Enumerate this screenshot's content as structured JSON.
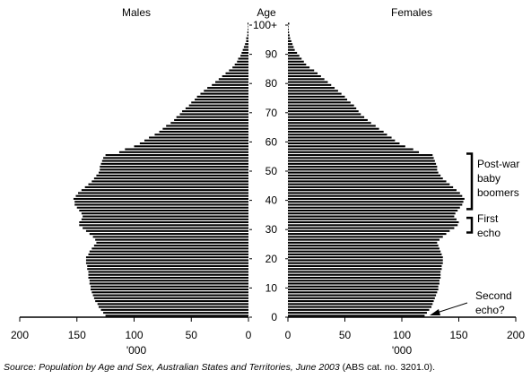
{
  "chart_data": {
    "type": "bar",
    "orientation": "horizontal-pyramid",
    "panels": [
      "Males",
      "Females"
    ],
    "center_label": "Age",
    "age_tick_labels": [
      "0",
      "10",
      "20",
      "30",
      "40",
      "50",
      "60",
      "70",
      "80",
      "90",
      "100+"
    ],
    "x_tick_labels": [
      "200",
      "150",
      "100",
      "50",
      "0"
    ],
    "x_unit_label": "'000",
    "xlim": [
      0,
      200
    ],
    "ages": [
      0,
      1,
      2,
      3,
      4,
      5,
      6,
      7,
      8,
      9,
      10,
      11,
      12,
      13,
      14,
      15,
      16,
      17,
      18,
      19,
      20,
      21,
      22,
      23,
      24,
      25,
      26,
      27,
      28,
      29,
      30,
      31,
      32,
      33,
      34,
      35,
      36,
      37,
      38,
      39,
      40,
      41,
      42,
      43,
      44,
      45,
      46,
      47,
      48,
      49,
      50,
      51,
      52,
      53,
      54,
      55,
      56,
      57,
      58,
      59,
      60,
      61,
      62,
      63,
      64,
      65,
      66,
      67,
      68,
      69,
      70,
      71,
      72,
      73,
      74,
      75,
      76,
      77,
      78,
      79,
      80,
      81,
      82,
      83,
      84,
      85,
      86,
      87,
      88,
      89,
      90,
      91,
      92,
      93,
      94,
      95,
      96,
      97,
      98,
      99,
      100
    ],
    "males": [
      125,
      127,
      129,
      131,
      132,
      134,
      135,
      136,
      137,
      138,
      138,
      139,
      139,
      140,
      140,
      140,
      141,
      141,
      142,
      142,
      142,
      140,
      139,
      137,
      135,
      133,
      134,
      136,
      139,
      142,
      145,
      148,
      148,
      146,
      145,
      146,
      148,
      150,
      152,
      152,
      153,
      151,
      149,
      146,
      143,
      140,
      137,
      135,
      133,
      131,
      130,
      130,
      129,
      128,
      127,
      125,
      113,
      108,
      100,
      95,
      91,
      87,
      82,
      78,
      75,
      72,
      68,
      65,
      63,
      60,
      58,
      55,
      52,
      50,
      47,
      45,
      42,
      39,
      36,
      32,
      29,
      26,
      23,
      20,
      17,
      14,
      12,
      10,
      9,
      7,
      6,
      5,
      4,
      3,
      2,
      2,
      1,
      1,
      0.6,
      0.4,
      0.8
    ],
    "females": [
      120,
      122,
      124,
      126,
      127,
      128,
      129,
      130,
      131,
      132,
      132,
      133,
      133,
      134,
      134,
      134,
      135,
      135,
      136,
      136,
      136,
      135,
      134,
      133,
      132,
      131,
      133,
      136,
      139,
      142,
      146,
      149,
      150,
      148,
      146,
      147,
      149,
      151,
      153,
      154,
      155,
      153,
      151,
      148,
      145,
      142,
      139,
      136,
      134,
      132,
      131,
      131,
      130,
      129,
      128,
      127,
      115,
      110,
      103,
      98,
      94,
      91,
      87,
      84,
      80,
      77,
      73,
      70,
      67,
      64,
      62,
      60,
      58,
      55,
      52,
      50,
      47,
      44,
      41,
      38,
      35,
      32,
      29,
      26,
      23,
      19,
      16,
      14,
      12,
      10,
      8,
      6,
      5,
      4,
      3,
      2,
      1.5,
      1,
      0.7,
      0.5,
      1.2
    ],
    "annotations": [
      {
        "text": "Post-war baby boomers",
        "lines": [
          "Post-war",
          "baby",
          "boomers"
        ],
        "age_range": [
          37,
          56
        ]
      },
      {
        "text": "First echo",
        "lines": [
          "First",
          "echo"
        ],
        "age_range": [
          29,
          34
        ]
      },
      {
        "text": "Second echo?",
        "lines": [
          "Second",
          "echo?"
        ],
        "age_range": [
          0,
          1
        ]
      }
    ]
  },
  "source": {
    "label": "Source:",
    "title": "Population by Age and Sex, Australian States and Territories, June 2003",
    "ref": "(ABS cat. no. 3201.0)."
  }
}
